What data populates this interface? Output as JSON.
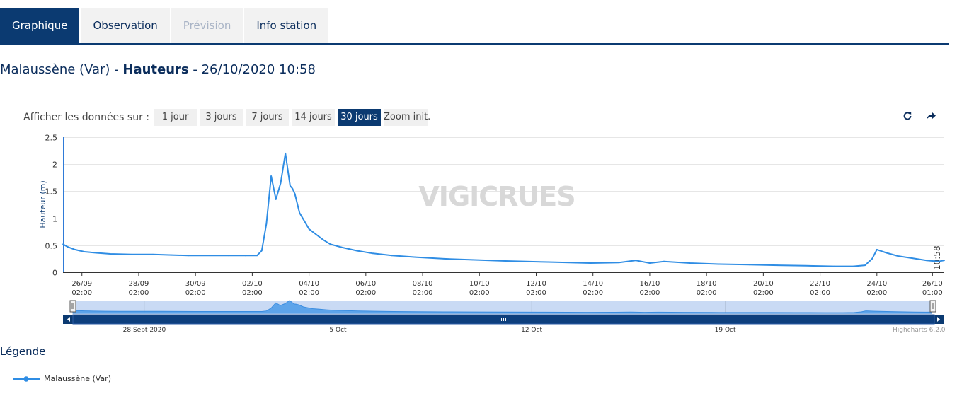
{
  "tabs": [
    {
      "label": "Graphique",
      "state": "active"
    },
    {
      "label": "Observation",
      "state": "normal"
    },
    {
      "label": "Prévision",
      "state": "disabled"
    },
    {
      "label": "Info station",
      "state": "normal"
    }
  ],
  "title": {
    "station": "Malaussène (Var)",
    "sep1": " - ",
    "variable": "Hauteurs",
    "sep2": " - ",
    "datetime": "26/10/2020 10:58"
  },
  "range_selector": {
    "label": "Afficher les données sur :",
    "buttons": [
      "1 jour",
      "3 jours",
      "7 jours",
      "14 jours",
      "30 jours",
      "Zoom init."
    ],
    "selected": "30 jours"
  },
  "toolbar": {
    "refresh_icon": "refresh-icon",
    "share_icon": "share-icon"
  },
  "watermark": "VIGICRUES",
  "colors": {
    "accent": "#0b3a71",
    "series": "#2f8de4",
    "navigator_fill": "#4a9ae8"
  },
  "chart_data": {
    "type": "line",
    "ylabel": "Hauteur (m)",
    "ylim": [
      0,
      2.5
    ],
    "yticks": [
      0,
      0.5,
      1,
      1.5,
      2,
      2.5
    ],
    "ytick_labels": [
      "0",
      "0.5",
      "1",
      "1.5",
      "2",
      "2.5"
    ],
    "x_start": "2020-09-25T10:00",
    "x_end": "2020-10-26T10:58",
    "xticks": [
      {
        "date": "26/09",
        "time": "02:00",
        "t": "2020-09-26T02:00"
      },
      {
        "date": "28/09",
        "time": "02:00",
        "t": "2020-09-28T02:00"
      },
      {
        "date": "30/09",
        "time": "02:00",
        "t": "2020-09-30T02:00"
      },
      {
        "date": "02/10",
        "time": "02:00",
        "t": "2020-10-02T02:00"
      },
      {
        "date": "04/10",
        "time": "02:00",
        "t": "2020-10-04T02:00"
      },
      {
        "date": "06/10",
        "time": "02:00",
        "t": "2020-10-06T02:00"
      },
      {
        "date": "08/10",
        "time": "02:00",
        "t": "2020-10-08T02:00"
      },
      {
        "date": "10/10",
        "time": "02:00",
        "t": "2020-10-10T02:00"
      },
      {
        "date": "12/10",
        "time": "02:00",
        "t": "2020-10-12T02:00"
      },
      {
        "date": "14/10",
        "time": "02:00",
        "t": "2020-10-14T02:00"
      },
      {
        "date": "16/10",
        "time": "02:00",
        "t": "2020-10-16T02:00"
      },
      {
        "date": "18/10",
        "time": "02:00",
        "t": "2020-10-18T02:00"
      },
      {
        "date": "20/10",
        "time": "02:00",
        "t": "2020-10-20T02:00"
      },
      {
        "date": "22/10",
        "time": "02:00",
        "t": "2020-10-22T02:00"
      },
      {
        "date": "24/10",
        "time": "02:00",
        "t": "2020-10-24T02:00"
      },
      {
        "date": "26/10",
        "time": "01:00",
        "t": "2020-10-26T01:00"
      }
    ],
    "plotline_label": "10:58",
    "series": [
      {
        "name": "Malaussène (Var)",
        "x": [
          "2020-09-25T10:00",
          "2020-09-25T14:00",
          "2020-09-25T20:00",
          "2020-09-26T04:00",
          "2020-09-26T14:00",
          "2020-09-27T02:00",
          "2020-09-27T20:00",
          "2020-09-28T14:00",
          "2020-09-29T06:00",
          "2020-09-29T20:00",
          "2020-09-30T14:00",
          "2020-10-01T06:00",
          "2020-10-01T20:00",
          "2020-10-02T06:00",
          "2020-10-02T10:00",
          "2020-10-02T14:00",
          "2020-10-02T18:00",
          "2020-10-02T22:00",
          "2020-10-03T02:00",
          "2020-10-03T06:00",
          "2020-10-03T10:00",
          "2020-10-03T12:00",
          "2020-10-03T14:00",
          "2020-10-03T18:00",
          "2020-10-03T22:00",
          "2020-10-04T02:00",
          "2020-10-04T08:00",
          "2020-10-04T14:00",
          "2020-10-04T20:00",
          "2020-10-05T06:00",
          "2020-10-05T18:00",
          "2020-10-06T08:00",
          "2020-10-07T00:00",
          "2020-10-07T20:00",
          "2020-10-08T20:00",
          "2020-10-09T20:00",
          "2020-10-11T00:00",
          "2020-10-12T12:00",
          "2020-10-14T00:00",
          "2020-10-15T00:00",
          "2020-10-15T14:00",
          "2020-10-16T02:00",
          "2020-10-16T14:00",
          "2020-10-17T12:00",
          "2020-10-18T12:00",
          "2020-10-19T14:00",
          "2020-10-20T14:00",
          "2020-10-21T14:00",
          "2020-10-22T14:00",
          "2020-10-23T06:00",
          "2020-10-23T16:00",
          "2020-10-23T22:00",
          "2020-10-24T02:00",
          "2020-10-24T10:00",
          "2020-10-24T20:00",
          "2020-10-25T08:00",
          "2020-10-25T20:00",
          "2020-10-26T06:00",
          "2020-10-26T10:58"
        ],
        "y": [
          0.52,
          0.47,
          0.42,
          0.38,
          0.36,
          0.34,
          0.33,
          0.33,
          0.32,
          0.31,
          0.31,
          0.31,
          0.31,
          0.31,
          0.4,
          0.9,
          1.78,
          1.35,
          1.65,
          2.2,
          1.6,
          1.55,
          1.45,
          1.1,
          0.95,
          0.8,
          0.7,
          0.6,
          0.52,
          0.46,
          0.4,
          0.35,
          0.31,
          0.28,
          0.25,
          0.23,
          0.21,
          0.19,
          0.17,
          0.18,
          0.22,
          0.17,
          0.2,
          0.17,
          0.15,
          0.14,
          0.13,
          0.12,
          0.11,
          0.11,
          0.13,
          0.25,
          0.42,
          0.36,
          0.3,
          0.26,
          0.22,
          0.2,
          0.22
        ]
      }
    ],
    "navigator_labels": [
      {
        "label": "28 Sept 2020",
        "t": "2020-09-28T00:00"
      },
      {
        "label": "5 Oct",
        "t": "2020-10-05T00:00"
      },
      {
        "label": "12 Oct",
        "t": "2020-10-12T00:00"
      },
      {
        "label": "19 Oct",
        "t": "2020-10-19T00:00"
      }
    ]
  },
  "credits": "Highcharts 6.2.0",
  "legend": {
    "title": "Légende",
    "items": [
      "Malaussène (Var)"
    ]
  }
}
